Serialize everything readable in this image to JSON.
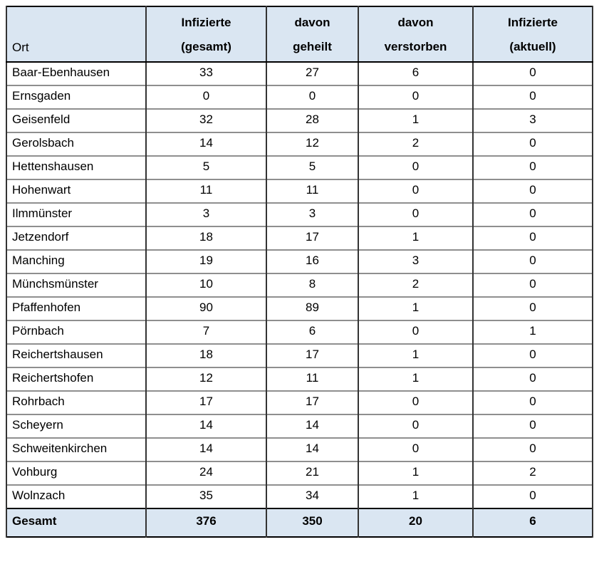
{
  "colors": {
    "header_bg": "#dae6f2",
    "outer_border": "#000000",
    "vertical_line": "#333333",
    "horizontal_line": "#8f8f8f"
  },
  "chart_data": {
    "type": "table",
    "header": {
      "ort": "Ort",
      "columns": [
        {
          "line1": "Infizierte",
          "line2": "(gesamt)"
        },
        {
          "line1": "davon",
          "line2": "geheilt"
        },
        {
          "line1": "davon",
          "line2": "verstorben"
        },
        {
          "line1": "Infizierte",
          "line2": "(aktuell)"
        }
      ]
    },
    "rows": [
      {
        "ort": "Baar-Ebenhausen",
        "gesamt": "33",
        "geheilt": "27",
        "verstorben": "6",
        "aktuell": "0"
      },
      {
        "ort": "Ernsgaden",
        "gesamt": "0",
        "geheilt": "0",
        "verstorben": "0",
        "aktuell": "0"
      },
      {
        "ort": "Geisenfeld",
        "gesamt": "32",
        "geheilt": "28",
        "verstorben": "1",
        "aktuell": "3"
      },
      {
        "ort": "Gerolsbach",
        "gesamt": "14",
        "geheilt": "12",
        "verstorben": "2",
        "aktuell": "0"
      },
      {
        "ort": "Hettenshausen",
        "gesamt": "5",
        "geheilt": "5",
        "verstorben": "0",
        "aktuell": "0"
      },
      {
        "ort": "Hohenwart",
        "gesamt": "11",
        "geheilt": "11",
        "verstorben": "0",
        "aktuell": "0"
      },
      {
        "ort": "Ilmmünster",
        "gesamt": "3",
        "geheilt": "3",
        "verstorben": "0",
        "aktuell": "0"
      },
      {
        "ort": "Jetzendorf",
        "gesamt": "18",
        "geheilt": "17",
        "verstorben": "1",
        "aktuell": "0"
      },
      {
        "ort": "Manching",
        "gesamt": "19",
        "geheilt": "16",
        "verstorben": "3",
        "aktuell": "0"
      },
      {
        "ort": "Münchsmünster",
        "gesamt": "10",
        "geheilt": "8",
        "verstorben": "2",
        "aktuell": "0"
      },
      {
        "ort": "Pfaffenhofen",
        "gesamt": "90",
        "geheilt": "89",
        "verstorben": "1",
        "aktuell": "0"
      },
      {
        "ort": "Pörnbach",
        "gesamt": "7",
        "geheilt": "6",
        "verstorben": "0",
        "aktuell": "1"
      },
      {
        "ort": "Reichertshausen",
        "gesamt": "18",
        "geheilt": "17",
        "verstorben": "1",
        "aktuell": "0"
      },
      {
        "ort": "Reichertshofen",
        "gesamt": "12",
        "geheilt": "11",
        "verstorben": "1",
        "aktuell": "0"
      },
      {
        "ort": "Rohrbach",
        "gesamt": "17",
        "geheilt": "17",
        "verstorben": "0",
        "aktuell": "0"
      },
      {
        "ort": "Scheyern",
        "gesamt": "14",
        "geheilt": "14",
        "verstorben": "0",
        "aktuell": "0"
      },
      {
        "ort": "Schweitenkirchen",
        "gesamt": "14",
        "geheilt": "14",
        "verstorben": "0",
        "aktuell": "0"
      },
      {
        "ort": "Vohburg",
        "gesamt": "24",
        "geheilt": "21",
        "verstorben": "1",
        "aktuell": "2"
      },
      {
        "ort": "Wolnzach",
        "gesamt": "35",
        "geheilt": "34",
        "verstorben": "1",
        "aktuell": "0"
      }
    ],
    "footer": {
      "ort": "Gesamt",
      "gesamt": "376",
      "geheilt": "350",
      "verstorben": "20",
      "aktuell": "6"
    }
  }
}
